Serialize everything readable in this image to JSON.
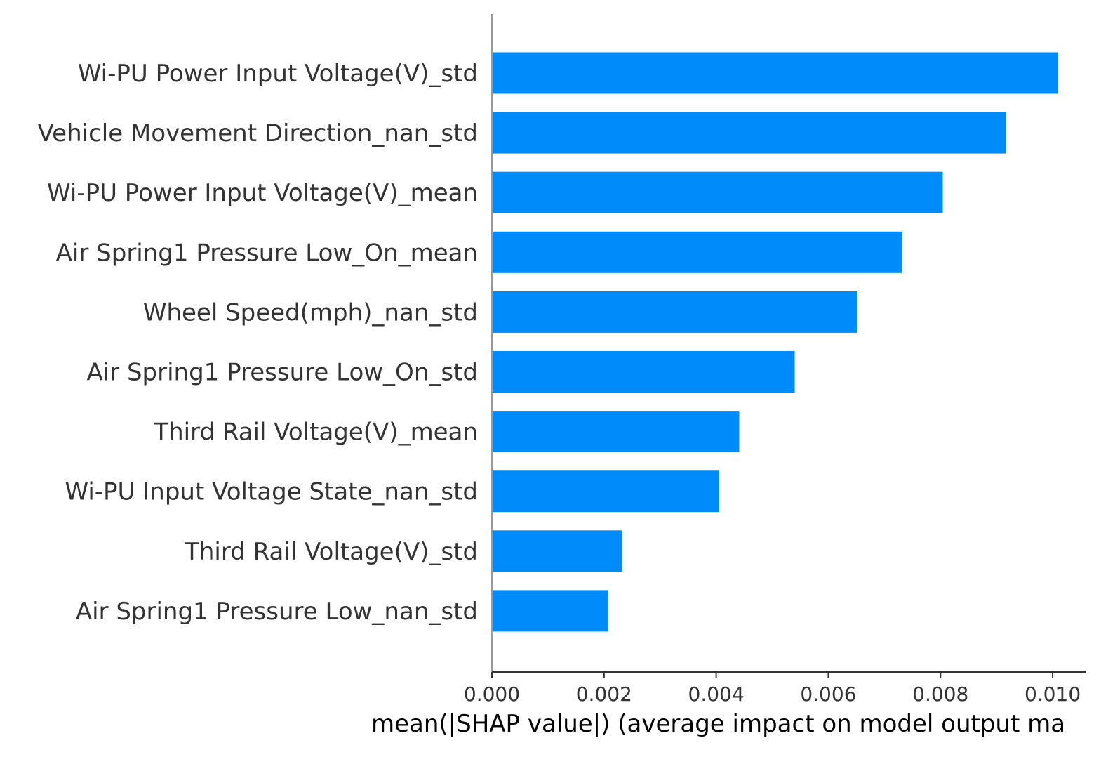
{
  "chart_data": {
    "type": "bar",
    "orientation": "horizontal",
    "title": "",
    "xlabel": "mean(|SHAP value|) (average impact on model output ma",
    "ylabel": "",
    "categories": [
      "Wi-PU Power Input Voltage(V)_std",
      "Vehicle Movement Direction_nan_std",
      "Wi-PU Power Input Voltage(V)_mean",
      "Air Spring1 Pressure Low_On_mean",
      "Wheel Speed(mph)_nan_std",
      "Air Spring1 Pressure Low_On_std",
      "Third Rail Voltage(V)_mean",
      "Wi-PU Input Voltage State_nan_std",
      "Third Rail Voltage(V)_std",
      "Air Spring1 Pressure Low_nan_std"
    ],
    "values": [
      0.0101,
      0.00917,
      0.00804,
      0.00732,
      0.00652,
      0.0054,
      0.00441,
      0.00405,
      0.00232,
      0.00207
    ],
    "xlim": [
      0,
      0.0106
    ],
    "xticks": [
      "0.000",
      "0.002",
      "0.004",
      "0.006",
      "0.008",
      "0.010"
    ],
    "xtick_values": [
      0,
      0.002,
      0.004,
      0.006,
      0.008,
      0.01
    ],
    "bar_color": "#008bfb",
    "axis_color": "#999999",
    "grid": false,
    "legend": "none"
  }
}
